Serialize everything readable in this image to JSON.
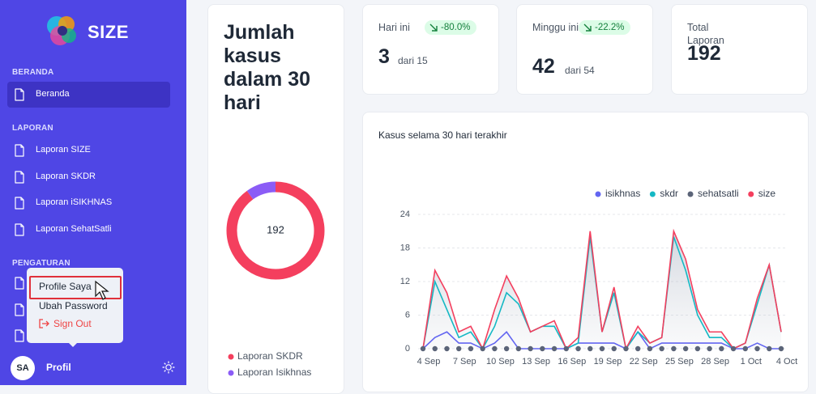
{
  "sidebar": {
    "brand": "SIZE",
    "sections": [
      {
        "title": "BERANDA",
        "items": [
          "Beranda"
        ]
      },
      {
        "title": "LAPORAN",
        "items": [
          "Laporan SIZE",
          "Laporan SKDR",
          "Laporan iSIKHNAS",
          "Laporan SehatSatli"
        ]
      },
      {
        "title": "PENGATURAN",
        "items": []
      }
    ],
    "user": {
      "initials": "SA",
      "label": "Profil"
    },
    "menu": [
      "Profile Saya",
      "Ubah Password",
      "Sign Out"
    ]
  },
  "stats": [
    {
      "label": "Hari ini",
      "value": 3,
      "detail": "dari 15",
      "change": "-80.0%"
    },
    {
      "label": "Minggu ini",
      "value": 42,
      "detail": "dari 54",
      "change": "-22.2%"
    },
    {
      "label": "Total Laporan",
      "value": 192
    }
  ],
  "chart_data": [
    {
      "type": "pie",
      "title": "Jumlah kasus dalam 30 hari",
      "total": 192,
      "categories": [
        "Laporan SKDR",
        "Laporan Isikhnas"
      ],
      "values": [
        173,
        19
      ],
      "colors": [
        "#f43f5e",
        "#8b5cf6"
      ]
    },
    {
      "type": "line",
      "title": "Kasus selama 30 hari terakhir",
      "x": [
        "4 Sep",
        null,
        null,
        "7 Sep",
        null,
        null,
        "10 Sep",
        null,
        null,
        "13 Sep",
        null,
        null,
        "16 Sep",
        null,
        null,
        "19 Sep",
        null,
        null,
        "22 Sep",
        null,
        null,
        "25 Sep",
        null,
        null,
        "28 Sep",
        null,
        null,
        "1 Oct",
        null,
        null,
        "4 Oct"
      ],
      "series": [
        {
          "name": "isikhnas",
          "color": "#6366f1",
          "values": [
            0,
            2,
            3,
            1,
            1,
            0,
            1,
            3,
            0,
            0,
            0,
            0,
            0,
            1,
            1,
            1,
            1,
            0,
            3,
            0,
            1,
            1,
            1,
            1,
            1,
            1,
            0,
            0,
            1,
            0,
            0
          ]
        },
        {
          "name": "skdr",
          "color": "#14b8c4",
          "values": [
            0,
            12,
            7,
            2,
            3,
            0,
            4,
            10,
            8,
            3,
            4,
            4,
            0,
            1,
            20,
            3,
            10,
            0,
            3,
            1,
            2,
            20,
            14,
            6,
            2,
            2,
            0,
            1,
            8,
            15,
            3
          ]
        },
        {
          "name": "sehatsatli",
          "color": "#5b6478",
          "values": [
            0,
            0,
            0,
            0,
            0,
            0,
            0,
            0,
            0,
            0,
            0,
            0,
            0,
            0,
            0,
            0,
            0,
            0,
            0,
            0,
            0,
            0,
            0,
            0,
            0,
            0,
            0,
            0,
            0,
            0,
            0
          ]
        },
        {
          "name": "size",
          "color": "#f43f5e",
          "values": [
            0,
            14,
            10,
            3,
            4,
            0,
            7,
            13,
            9,
            3,
            4,
            5,
            0,
            2,
            21,
            3,
            11,
            0,
            4,
            1,
            2,
            21,
            16,
            7,
            3,
            3,
            0,
            1,
            9,
            15,
            3
          ]
        }
      ],
      "ylim": [
        0,
        24
      ],
      "yticks": [
        0,
        6,
        12,
        18,
        24
      ],
      "grid": true,
      "legend": "top-right"
    }
  ]
}
